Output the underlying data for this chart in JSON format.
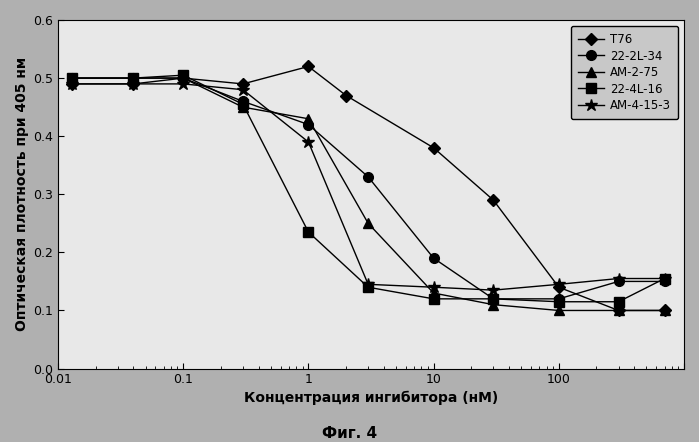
{
  "title": "",
  "xlabel": "Концентрация ингибитора (нМ)",
  "ylabel": "Оптическая плотность при 405 нм",
  "caption": "Фиг. 4",
  "xlim": [
    0.01,
    1000
  ],
  "ylim": [
    0,
    0.6
  ],
  "yticks": [
    0,
    0.1,
    0.2,
    0.3,
    0.4,
    0.5,
    0.6
  ],
  "figure_bg": "#b0b0b0",
  "axes_bg": "#e8e8e8",
  "legend_bg": "#c8c8c8",
  "series": [
    {
      "label": "T76",
      "marker": "D",
      "markersize": 6,
      "x": [
        0.013,
        0.04,
        0.1,
        0.3,
        1.0,
        2.0,
        10.0,
        30.0,
        100.0,
        300.0,
        700.0
      ],
      "y": [
        0.49,
        0.49,
        0.5,
        0.49,
        0.52,
        0.47,
        0.38,
        0.29,
        0.14,
        0.1,
        0.1
      ]
    },
    {
      "label": "22-2L-34",
      "marker": "o",
      "markersize": 7,
      "x": [
        0.013,
        0.04,
        0.1,
        0.3,
        1.0,
        3.0,
        10.0,
        30.0,
        100.0,
        300.0,
        700.0
      ],
      "y": [
        0.5,
        0.5,
        0.5,
        0.46,
        0.42,
        0.33,
        0.19,
        0.12,
        0.12,
        0.15,
        0.15
      ]
    },
    {
      "label": "АМ-2-75",
      "marker": "^",
      "markersize": 7,
      "x": [
        0.013,
        0.04,
        0.1,
        0.3,
        1.0,
        3.0,
        10.0,
        30.0,
        100.0,
        300.0,
        700.0
      ],
      "y": [
        0.5,
        0.5,
        0.5,
        0.45,
        0.43,
        0.25,
        0.13,
        0.11,
        0.1,
        0.1,
        0.1
      ]
    },
    {
      "label": "22-4L-16",
      "marker": "s",
      "markersize": 7,
      "x": [
        0.013,
        0.04,
        0.1,
        0.3,
        1.0,
        3.0,
        10.0,
        30.0,
        100.0,
        300.0,
        700.0
      ],
      "y": [
        0.5,
        0.5,
        0.505,
        0.455,
        0.235,
        0.14,
        0.12,
        0.12,
        0.115,
        0.115,
        0.155
      ]
    },
    {
      "label": "АМ-4-15-3",
      "marker": "*",
      "markersize": 9,
      "x": [
        0.013,
        0.04,
        0.1,
        0.3,
        1.0,
        3.0,
        10.0,
        30.0,
        100.0,
        300.0,
        700.0
      ],
      "y": [
        0.49,
        0.49,
        0.49,
        0.48,
        0.39,
        0.145,
        0.14,
        0.135,
        0.145,
        0.155,
        0.155
      ]
    }
  ]
}
